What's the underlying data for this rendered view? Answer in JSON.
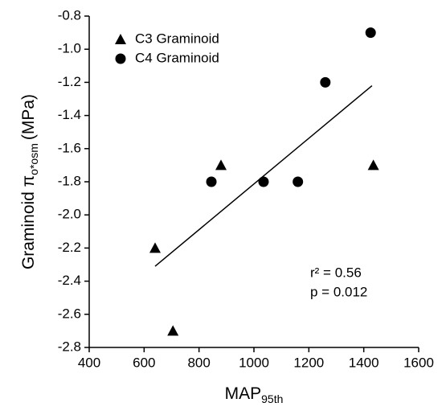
{
  "chart_data": {
    "type": "scatter",
    "x_label": {
      "text": "MAP",
      "sub": "95th"
    },
    "y_label": {
      "text": "Graminoid π",
      "sub": "o*osm",
      "unit": "(MPa)"
    },
    "xlim": [
      400,
      1600
    ],
    "xticks": [
      400,
      600,
      800,
      1000,
      1200,
      1400,
      1600
    ],
    "ylim": [
      -2.8,
      -0.8
    ],
    "yticks": [
      -2.8,
      -2.6,
      -2.4,
      -2.2,
      {
        "value": -2.0,
        "label": "-2.0"
      },
      -1.8,
      -1.6,
      -1.4,
      -1.2,
      {
        "value": -1.0,
        "label": "-1.0"
      },
      -0.8
    ],
    "series": [
      {
        "name": "C3 Graminoid",
        "marker": "triangle",
        "color": "#000000",
        "x": [
          640,
          705,
          880,
          1435
        ],
        "values": [
          -2.2,
          -2.7,
          -1.7,
          -1.7
        ]
      },
      {
        "name": "C4 Graminoid",
        "marker": "circle",
        "color": "#000000",
        "x": [
          845,
          1035,
          1160,
          1260,
          1425
        ],
        "values": [
          -1.8,
          -1.8,
          -1.8,
          -1.2,
          -0.9
        ]
      }
    ],
    "fit": {
      "x": [
        640,
        1430
      ],
      "values": [
        -2.31,
        -1.22
      ]
    },
    "annotations": [
      "r² = 0.56",
      "p = 0.012"
    ],
    "legend": "upper left"
  }
}
